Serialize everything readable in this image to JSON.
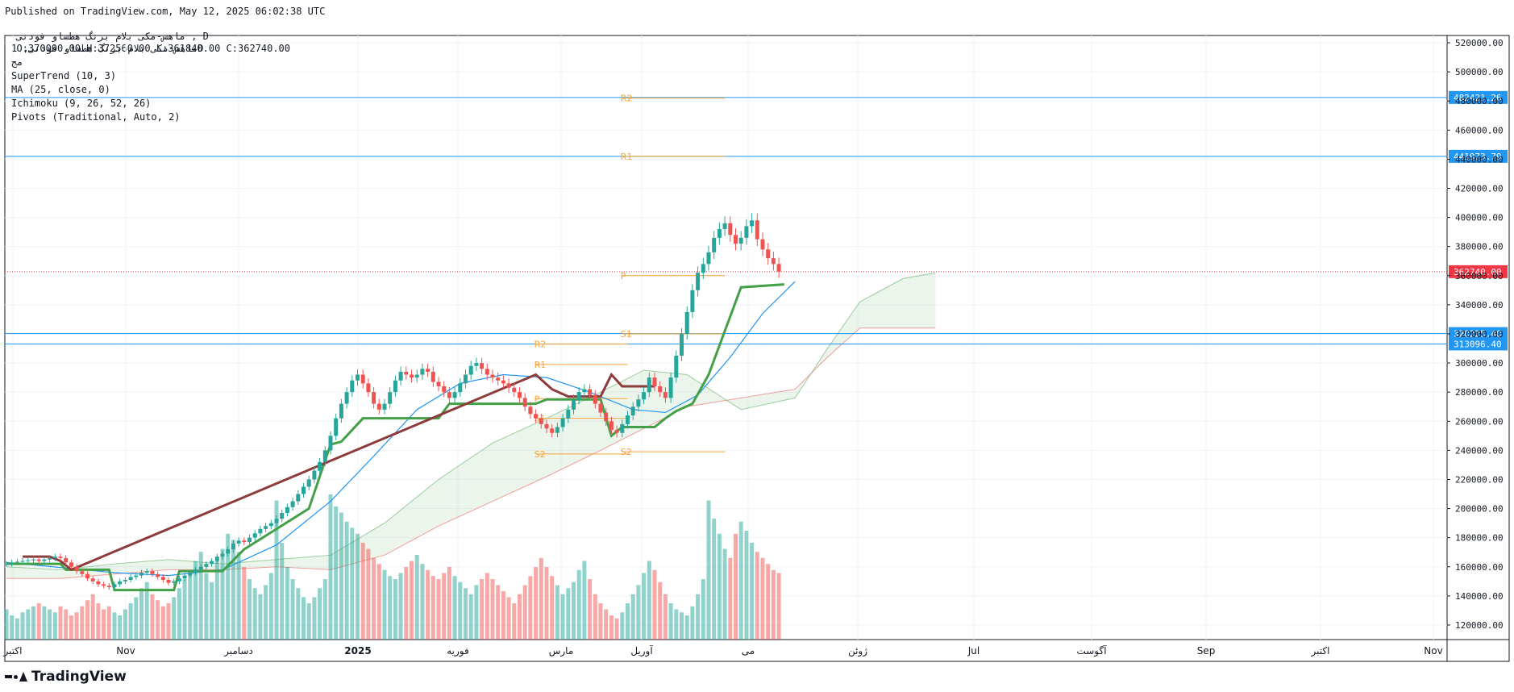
{
  "header": {
    "published": "Published on TradingView.com, May 12, 2025 06:02:38 UTC",
    "symbol_line": "ﻣﺎﻫﺲ-ﻣﮑﯽ ﺑﻼﻡ ﺑﺮﻧﮓ ﻫﻄﺴﺎﻭ ﻓﻮﺩﻧﯽ , D",
    "ohlc": "O:370000.00 H:372560.00 L:361840.00 C:362740.00"
  },
  "legend": {
    "title": "ﻣﺎﻫﺲ-ﻣﮑﯽ ﺑﻼﻡ ﺑﺮﻧﮓ ﻫﻄﺴﺎﻭ ﻓﻮﺩﻧﯽ, 1D",
    "subtitle": "ﻣﺞ",
    "indicators": [
      "SuperTrend (10, 3)",
      "MA (25, close, 0)",
      "Ichimoku (9, 26, 52, 26)",
      "Pivots (Traditional, Auto, 2)"
    ]
  },
  "brand": {
    "name": "TradingView",
    "icon": "tradingview-logo-icon"
  },
  "colors": {
    "up": "#26a69a",
    "down": "#ef5350",
    "supertrend_up": "#43a047",
    "supertrend_down": "#8d3b3b",
    "ma": "#2196f3",
    "pivot": "#f7a335",
    "hline": "#2196f3",
    "last_price": "#f23645"
  },
  "chart_data": {
    "type": "candlestick",
    "ylim": [
      110000,
      525000
    ],
    "y_ticks": [
      120000,
      140000,
      160000,
      180000,
      200000,
      220000,
      240000,
      260000,
      280000,
      300000,
      320000,
      340000,
      360000,
      380000,
      400000,
      420000,
      440000,
      460000,
      480000,
      500000,
      520000
    ],
    "x_labels": [
      "اکتبر",
      "Nov",
      "دسامبر",
      "2025",
      "فوریه",
      "مارس",
      "آوریل",
      "می",
      "ژوئن",
      "Jul",
      "آگوست",
      "Sep",
      "اکتبر",
      "Nov"
    ],
    "horizontal_lines": [
      482421.26,
      441973.79,
      320225.4,
      313096.4
    ],
    "horizontal_line_labels": [
      "482421.26",
      "441973.79",
      "320225.40",
      "313096.40"
    ],
    "last_price": 362740.0,
    "last_price_label": "362740.00",
    "pivots_april": {
      "R2": 313000,
      "R1": 299000,
      "P": 275500,
      "S1": 262000,
      "S2": 237500
    },
    "pivots_may": {
      "R2": 482000,
      "R1": 442000,
      "P": 360000,
      "S1": 320000,
      "S2": 239000
    },
    "closes": [
      162000,
      163000,
      163500,
      164000,
      164500,
      165000,
      164000,
      165000,
      166000,
      167000,
      166000,
      163000,
      160000,
      157000,
      155000,
      152000,
      150000,
      148000,
      147000,
      146000,
      148000,
      150000,
      151000,
      153000,
      154000,
      156000,
      157000,
      155000,
      153000,
      151000,
      149000,
      150000,
      152000,
      154000,
      156000,
      158000,
      160000,
      162000,
      164000,
      167000,
      169000,
      172000,
      176000,
      178000,
      177000,
      180000,
      183000,
      186000,
      188000,
      190000,
      193000,
      197000,
      201000,
      205000,
      210000,
      215000,
      220000,
      226000,
      232000,
      240000,
      250000,
      262000,
      272000,
      280000,
      288000,
      292000,
      286000,
      280000,
      272000,
      268000,
      272000,
      280000,
      288000,
      294000,
      292000,
      290000,
      292000,
      296000,
      294000,
      287000,
      284000,
      280000,
      276000,
      280000,
      286000,
      292000,
      298000,
      300000,
      296000,
      292000,
      290000,
      288000,
      286000,
      283000,
      280000,
      276000,
      270000,
      265000,
      262000,
      258000,
      255000,
      252000,
      256000,
      262000,
      268000,
      275000,
      280000,
      282000,
      278000,
      272000,
      266000,
      260000,
      254000,
      252000,
      258000,
      264000,
      270000,
      275000,
      280000,
      290000,
      284000,
      280000,
      276000,
      290000,
      305000,
      320000,
      335000,
      350000,
      362000,
      368000,
      376000,
      386000,
      392000,
      396000,
      388000,
      382000,
      386000,
      394000,
      398000,
      385000,
      378000,
      372000,
      368000,
      362740
    ],
    "volumes": [
      20,
      16,
      14,
      18,
      20,
      22,
      24,
      22,
      20,
      18,
      22,
      20,
      16,
      18,
      22,
      26,
      30,
      24,
      20,
      22,
      18,
      16,
      20,
      24,
      28,
      34,
      38,
      30,
      26,
      22,
      24,
      28,
      34,
      40,
      46,
      52,
      58,
      44,
      38,
      52,
      60,
      70,
      66,
      58,
      48,
      40,
      34,
      30,
      36,
      44,
      92,
      64,
      48,
      40,
      34,
      28,
      24,
      28,
      34,
      40,
      96,
      88,
      84,
      78,
      74,
      70,
      64,
      60,
      54,
      50,
      46,
      42,
      40,
      44,
      48,
      52,
      56,
      50,
      46,
      42,
      40,
      44,
      48,
      42,
      38,
      34,
      30,
      36,
      40,
      44,
      40,
      36,
      32,
      28,
      24,
      30,
      36,
      42,
      48,
      54,
      48,
      42,
      36,
      30,
      34,
      38,
      46,
      52,
      40,
      30,
      24,
      20,
      16,
      14,
      18,
      24,
      30,
      36,
      44,
      52,
      46,
      38,
      30,
      24,
      20,
      18,
      16,
      22,
      30,
      40,
      92,
      80,
      70,
      60,
      54,
      70,
      78,
      72,
      64,
      58,
      54,
      50,
      46,
      44
    ],
    "supertrend": [
      [
        0,
        162000
      ],
      [
        10,
        162000
      ],
      [
        11,
        158000
      ],
      [
        19,
        158000
      ],
      [
        20,
        144000
      ],
      [
        31,
        144000
      ],
      [
        32,
        157000
      ],
      [
        40,
        157000
      ],
      [
        44,
        172000
      ],
      [
        56,
        200000
      ],
      [
        60,
        244000
      ],
      [
        62,
        246000
      ],
      [
        66,
        262000
      ],
      [
        80,
        262000
      ],
      [
        82,
        272000
      ],
      [
        98,
        272000
      ],
      [
        100,
        275000
      ],
      [
        110,
        275000
      ],
      [
        112,
        250000
      ],
      [
        114,
        256000
      ],
      [
        120,
        256000
      ],
      [
        122,
        262000
      ],
      [
        124,
        267000
      ],
      [
        127,
        272000
      ],
      [
        130,
        292000
      ],
      [
        133,
        322000
      ],
      [
        136,
        352000
      ],
      [
        144,
        354000
      ]
    ],
    "supertrend_down": [
      [
        3,
        167000
      ],
      [
        8,
        167000
      ],
      [
        10,
        164000
      ],
      [
        12,
        158000
      ],
      [
        98,
        292000
      ],
      [
        101,
        282000
      ],
      [
        104,
        277000
      ],
      [
        110,
        277000
      ],
      [
        112,
        292000
      ],
      [
        114,
        284000
      ],
      [
        120,
        284000
      ]
    ],
    "ma25": [
      [
        0,
        163000
      ],
      [
        20,
        156000
      ],
      [
        30,
        154000
      ],
      [
        40,
        158000
      ],
      [
        50,
        175000
      ],
      [
        60,
        205000
      ],
      [
        68,
        236000
      ],
      [
        76,
        268000
      ],
      [
        84,
        286000
      ],
      [
        92,
        292000
      ],
      [
        100,
        290000
      ],
      [
        108,
        280000
      ],
      [
        116,
        268000
      ],
      [
        122,
        266000
      ],
      [
        128,
        278000
      ],
      [
        134,
        304000
      ],
      [
        140,
        334000
      ],
      [
        146,
        356000
      ]
    ],
    "kumo": [
      [
        0,
        152000,
        160000
      ],
      [
        10,
        152000,
        158000
      ],
      [
        20,
        155000,
        162000
      ],
      [
        30,
        158000,
        165000
      ],
      [
        40,
        158000,
        162000
      ],
      [
        50,
        160000,
        165000
      ],
      [
        60,
        158000,
        168000
      ],
      [
        70,
        168000,
        190000
      ],
      [
        80,
        188000,
        220000
      ],
      [
        90,
        205000,
        245000
      ],
      [
        100,
        222000,
        262000
      ],
      [
        110,
        240000,
        280000
      ],
      [
        118,
        255000,
        295000
      ],
      [
        126,
        270000,
        292000
      ],
      [
        136,
        276000,
        268000
      ],
      [
        146,
        282000,
        276000
      ],
      [
        152,
        304000,
        310000
      ],
      [
        158,
        324000,
        342000
      ],
      [
        166,
        324000,
        358000
      ],
      [
        172,
        324000,
        362000
      ]
    ]
  }
}
